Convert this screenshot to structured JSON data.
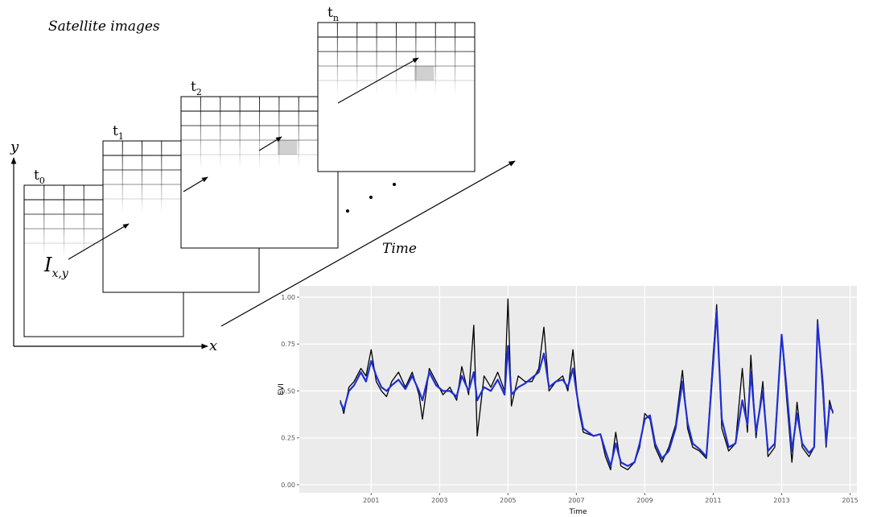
{
  "diagram": {
    "title": "Satellite images",
    "frames": [
      {
        "base": "t",
        "sub": "0"
      },
      {
        "base": "t",
        "sub": "1"
      },
      {
        "base": "t",
        "sub": "2"
      },
      {
        "base": "t",
        "sub": "n"
      }
    ],
    "y_axis": "y",
    "x_axis": "x",
    "pixel": {
      "base": "I",
      "sub": "x,y"
    },
    "time_label": "Time"
  },
  "chart_data": {
    "type": "line",
    "xlabel": "Time",
    "ylabel": "EVI",
    "x": [
      2000.1,
      2000.2,
      2000.35,
      2000.5,
      2000.7,
      2000.85,
      2001.0,
      2001.15,
      2001.3,
      2001.45,
      2001.6,
      2001.8,
      2002.0,
      2002.2,
      2002.4,
      2002.5,
      2002.7,
      2002.9,
      2003.1,
      2003.3,
      2003.5,
      2003.65,
      2003.85,
      2004.0,
      2004.1,
      2004.3,
      2004.5,
      2004.7,
      2004.9,
      2005.0,
      2005.1,
      2005.3,
      2005.5,
      2005.7,
      2005.9,
      2006.05,
      2006.2,
      2006.4,
      2006.6,
      2006.75,
      2006.9,
      2007.05,
      2007.2,
      2007.5,
      2007.7,
      2007.85,
      2008.0,
      2008.15,
      2008.3,
      2008.5,
      2008.7,
      2008.85,
      2009.0,
      2009.15,
      2009.3,
      2009.5,
      2009.7,
      2009.9,
      2010.1,
      2010.25,
      2010.4,
      2010.6,
      2010.8,
      2011.0,
      2011.1,
      2011.25,
      2011.45,
      2011.65,
      2011.85,
      2012.0,
      2012.1,
      2012.25,
      2012.45,
      2012.6,
      2012.8,
      2013.0,
      2013.15,
      2013.3,
      2013.45,
      2013.6,
      2013.8,
      2013.95,
      2014.05,
      2014.2,
      2014.3,
      2014.4,
      2014.5
    ],
    "series": [
      {
        "color": "#000000",
        "values": [
          0.45,
          0.38,
          0.52,
          0.55,
          0.62,
          0.58,
          0.72,
          0.55,
          0.5,
          0.47,
          0.55,
          0.6,
          0.52,
          0.6,
          0.48,
          0.35,
          0.62,
          0.55,
          0.48,
          0.52,
          0.45,
          0.63,
          0.48,
          0.85,
          0.26,
          0.58,
          0.52,
          0.6,
          0.5,
          0.99,
          0.42,
          0.58,
          0.55,
          0.55,
          0.62,
          0.84,
          0.5,
          0.55,
          0.58,
          0.5,
          0.72,
          0.42,
          0.28,
          0.26,
          0.27,
          0.15,
          0.08,
          0.28,
          0.1,
          0.08,
          0.12,
          0.2,
          0.38,
          0.35,
          0.2,
          0.12,
          0.2,
          0.32,
          0.61,
          0.3,
          0.2,
          0.18,
          0.14,
          0.7,
          0.96,
          0.3,
          0.18,
          0.22,
          0.62,
          0.28,
          0.69,
          0.25,
          0.55,
          0.15,
          0.2,
          0.8,
          0.45,
          0.12,
          0.44,
          0.2,
          0.15,
          0.2,
          0.88,
          0.5,
          0.2,
          0.45,
          0.38
        ]
      },
      {
        "color": "#1f2fd0",
        "values": [
          0.44,
          0.4,
          0.5,
          0.53,
          0.6,
          0.55,
          0.66,
          0.58,
          0.52,
          0.5,
          0.53,
          0.56,
          0.51,
          0.58,
          0.5,
          0.45,
          0.6,
          0.53,
          0.5,
          0.5,
          0.47,
          0.58,
          0.5,
          0.6,
          0.45,
          0.52,
          0.5,
          0.56,
          0.48,
          0.74,
          0.48,
          0.52,
          0.54,
          0.57,
          0.6,
          0.7,
          0.52,
          0.55,
          0.56,
          0.52,
          0.62,
          0.44,
          0.3,
          0.26,
          0.27,
          0.18,
          0.1,
          0.22,
          0.12,
          0.1,
          0.12,
          0.22,
          0.35,
          0.37,
          0.22,
          0.14,
          0.18,
          0.3,
          0.55,
          0.33,
          0.22,
          0.19,
          0.15,
          0.65,
          0.93,
          0.35,
          0.2,
          0.22,
          0.45,
          0.32,
          0.6,
          0.28,
          0.5,
          0.18,
          0.22,
          0.8,
          0.5,
          0.18,
          0.38,
          0.22,
          0.17,
          0.2,
          0.86,
          0.55,
          0.22,
          0.42,
          0.39
        ]
      }
    ],
    "xlim": [
      1998.9,
      2015.2
    ],
    "xticks": [
      2001,
      2003,
      2005,
      2007,
      2009,
      2011,
      2013,
      2015
    ],
    "ylim": [
      -0.043,
      1.06
    ],
    "yticks": [
      {
        "value": 0,
        "label": "0.00"
      },
      {
        "value": 0.25,
        "label": "0.25"
      },
      {
        "value": 0.5,
        "label": "0.50"
      },
      {
        "value": 0.75,
        "label": "0.75"
      },
      {
        "value": 1,
        "label": "1.00"
      }
    ],
    "grid": true
  }
}
